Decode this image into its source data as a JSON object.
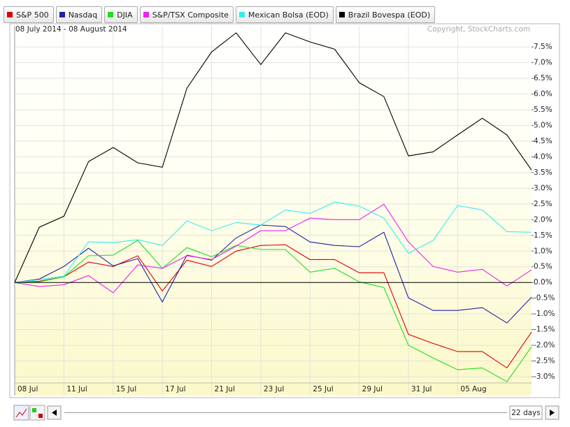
{
  "chart_data": {
    "type": "line",
    "subtitle": "08 July 2014 - 08 August 2014",
    "credit": "Copyright, StockCharts.com",
    "period": "22 days",
    "categories": [
      "08 Jul",
      null,
      "11 Jul",
      null,
      "15 Jul",
      null,
      "17 Jul",
      null,
      "21 Jul",
      null,
      "23 Jul",
      null,
      "25 Jul",
      null,
      "29 Jul",
      null,
      "31 Jul",
      null,
      "05 Aug",
      null,
      null,
      null
    ],
    "series": [
      {
        "name": "S&P 500",
        "color": "#e00000",
        "values": [
          0,
          0.04,
          0.18,
          0.65,
          0.51,
          0.85,
          -0.27,
          0.71,
          0.51,
          1.0,
          1.18,
          1.2,
          0.73,
          0.73,
          0.31,
          0.31,
          -1.65,
          -1.94,
          -2.2,
          -2.2,
          -2.72,
          -1.58
        ]
      },
      {
        "name": "Nasdaq",
        "color": "#2020a8",
        "values": [
          0,
          0.11,
          0.51,
          1.09,
          0.53,
          0.76,
          -0.62,
          0.87,
          0.71,
          1.42,
          1.83,
          1.78,
          1.29,
          1.18,
          1.14,
          1.6,
          -0.49,
          -0.89,
          -0.89,
          -0.8,
          -1.29,
          -0.47
        ]
      },
      {
        "name": "DJIA",
        "color": "#22dd22",
        "values": [
          0,
          0.02,
          0.18,
          0.85,
          0.87,
          1.34,
          0.45,
          1.11,
          0.82,
          1.18,
          1.05,
          1.05,
          0.33,
          0.45,
          0.02,
          -0.16,
          -2.0,
          -2.4,
          -2.78,
          -2.72,
          -3.16,
          -2.05
        ]
      },
      {
        "name": "S&P/TSX Composite",
        "color": "#ee22ee",
        "values": [
          0,
          -0.13,
          -0.07,
          0.22,
          -0.33,
          0.56,
          0.45,
          0.85,
          0.73,
          1.16,
          1.65,
          1.65,
          2.05,
          2.0,
          2.0,
          2.49,
          1.29,
          0.51,
          0.33,
          0.42,
          -0.11,
          0.4
        ]
      },
      {
        "name": "Mexican Bolsa (EOD)",
        "color": "#33eeee",
        "values": [
          0,
          0.09,
          0.2,
          1.29,
          1.27,
          1.36,
          1.18,
          1.96,
          1.65,
          1.91,
          1.83,
          2.31,
          2.2,
          2.56,
          2.43,
          2.05,
          0.93,
          1.34,
          2.45,
          2.31,
          1.62,
          1.6
        ]
      },
      {
        "name": "Brazil Bovespa (EOD)",
        "color": "#000000",
        "values": [
          0,
          1.76,
          2.11,
          3.85,
          4.3,
          3.81,
          3.67,
          6.19,
          7.34,
          7.95,
          6.94,
          7.95,
          7.66,
          7.43,
          6.36,
          5.92,
          4.03,
          4.16,
          4.7,
          5.23,
          4.7,
          3.58
        ]
      }
    ],
    "ylim": [
      -3.2,
      8.15
    ],
    "yticks": [
      {
        "value": -3.0,
        "label": "-3.0%"
      },
      {
        "value": -2.5,
        "label": "-2.5%"
      },
      {
        "value": -2.0,
        "label": "-2.0%"
      },
      {
        "value": -1.5,
        "label": "-1.5%"
      },
      {
        "value": -1.0,
        "label": "-1.0%"
      },
      {
        "value": -0.5,
        "label": "-0.5%"
      },
      {
        "value": 0,
        "label": "0.0%"
      },
      {
        "value": 0.5,
        "label": "0.5%"
      },
      {
        "value": 1.0,
        "label": "1.0%"
      },
      {
        "value": 1.5,
        "label": "1.5%"
      },
      {
        "value": 2.0,
        "label": "2.0%"
      },
      {
        "value": 2.5,
        "label": "2.5%"
      },
      {
        "value": 3.0,
        "label": "3.0%"
      },
      {
        "value": 3.5,
        "label": "3.5%"
      },
      {
        "value": 4.0,
        "label": "4.0%"
      },
      {
        "value": 4.5,
        "label": "4.5%"
      },
      {
        "value": 5.0,
        "label": "5.0%"
      },
      {
        "value": 5.5,
        "label": "5.5%"
      },
      {
        "value": 6.0,
        "label": "6.0%"
      },
      {
        "value": 6.5,
        "label": "6.5%"
      },
      {
        "value": 7.0,
        "label": "7.0%"
      },
      {
        "value": 7.5,
        "label": "7.5%"
      }
    ],
    "grid": true
  }
}
